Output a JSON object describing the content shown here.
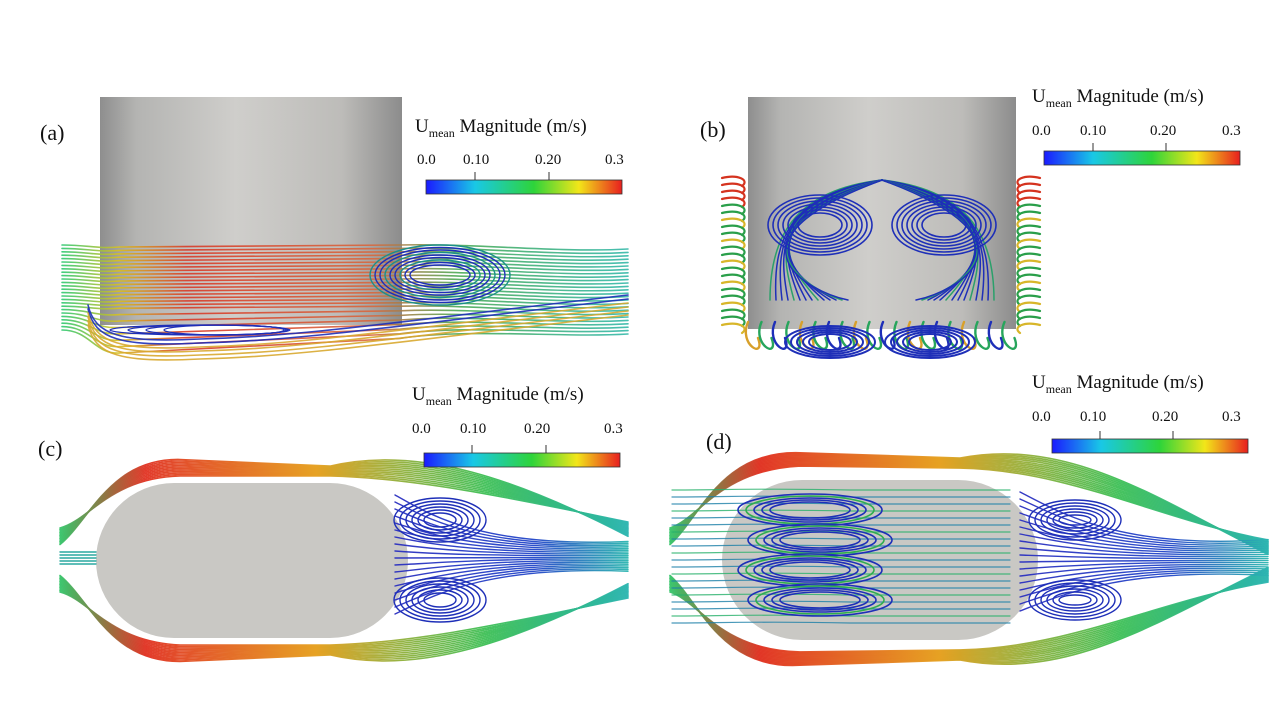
{
  "colorbar": {
    "title_main": "U",
    "title_sub": "mean",
    "title_rest": " Magnitude  (m/s)",
    "ticks": [
      "0.0",
      "0.10",
      "0.20",
      "0.3"
    ],
    "stops": [
      "#1a1aff",
      "#19c8e6",
      "#2ed43a",
      "#f2e619",
      "#e81f1f"
    ]
  },
  "panels": [
    {
      "id": "a",
      "label": "(a)",
      "view": "side"
    },
    {
      "id": "b",
      "label": "(b)",
      "view": "front"
    },
    {
      "id": "c",
      "label": "(c)",
      "view": "top"
    },
    {
      "id": "d",
      "label": "(d)",
      "view": "top-bottom"
    }
  ],
  "colors": {
    "body": "#c9c8c4",
    "slow": "#1e2fb8",
    "mid": "#2bbf9a",
    "fast": "#e0301e"
  }
}
